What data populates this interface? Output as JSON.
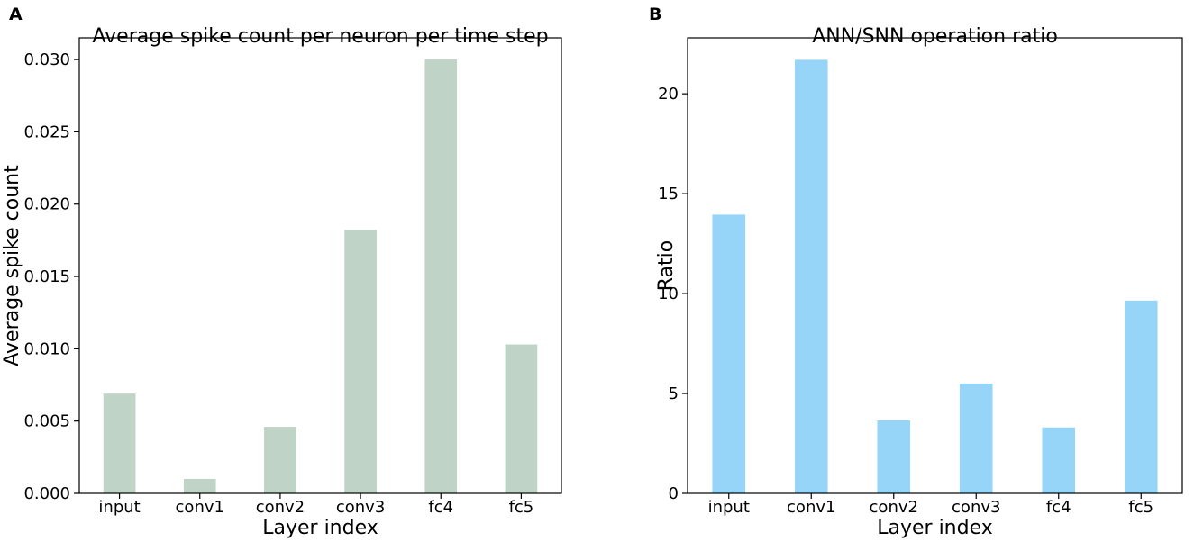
{
  "chart_data": [
    {
      "panel": "A",
      "type": "bar",
      "title": "Average spike count per neuron per time step",
      "xlabel": "Layer index",
      "ylabel": "Average spike count",
      "categories": [
        "input",
        "conv1",
        "conv2",
        "conv3",
        "fc4",
        "fc5"
      ],
      "values": [
        0.0069,
        0.001,
        0.0046,
        0.0182,
        0.03,
        0.0103
      ],
      "ylim": [
        0,
        0.0315
      ],
      "yticks": [
        0.0,
        0.005,
        0.01,
        0.015,
        0.02,
        0.025,
        0.03
      ],
      "ytick_labels": [
        "0.000",
        "0.005",
        "0.010",
        "0.015",
        "0.020",
        "0.025",
        "0.030"
      ],
      "color": "#bfd3c6",
      "grid": false
    },
    {
      "panel": "B",
      "type": "bar",
      "title": "ANN/SNN operation ratio",
      "xlabel": "Layer index",
      "ylabel": "Ratio",
      "categories": [
        "input",
        "conv1",
        "conv2",
        "conv3",
        "fc4",
        "fc5"
      ],
      "values": [
        13.95,
        21.7,
        3.65,
        5.5,
        3.3,
        9.65
      ],
      "ylim": [
        0,
        22.8
      ],
      "yticks": [
        0,
        5,
        10,
        15,
        20
      ],
      "ytick_labels": [
        "0",
        "5",
        "10",
        "15",
        "20"
      ],
      "color": "#96d5f7",
      "grid": false
    }
  ]
}
